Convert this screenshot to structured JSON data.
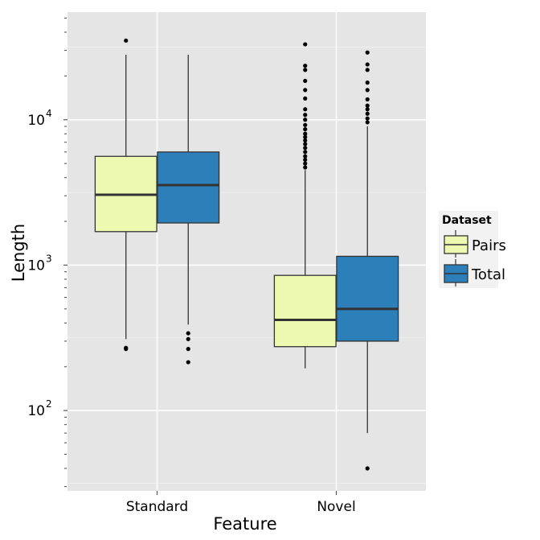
{
  "chart_data": {
    "type": "boxplot",
    "xlabel": "Feature",
    "ylabel": "Length",
    "y_scale": "log10",
    "ylim": [
      28,
      55000
    ],
    "y_major_ticks": [
      100,
      1000,
      10000
    ],
    "y_tick_labels": [
      {
        "base": "10",
        "exp": "2"
      },
      {
        "base": "10",
        "exp": "3"
      },
      {
        "base": "10",
        "exp": "4"
      }
    ],
    "categories": [
      "Standard",
      "Novel"
    ],
    "legend": {
      "title": "Dataset",
      "position": "right"
    },
    "grid": true,
    "series": [
      {
        "name": "Pairs",
        "color": "#EDF8B1",
        "boxes": [
          {
            "category": "Standard",
            "q1": 1700,
            "median": 3050,
            "q3": 5600,
            "whisker_low": 310,
            "whisker_high": 28000,
            "outliers": [
              265,
              270,
              35000
            ]
          },
          {
            "category": "Novel",
            "q1": 275,
            "median": 420,
            "q3": 850,
            "whisker_low": 195,
            "whisker_high": 4500,
            "outliers": [
              4700,
              5000,
              5300,
              5600,
              6000,
              6400,
              6800,
              7200,
              7600,
              8000,
              8600,
              9200,
              10000,
              10800,
              11800,
              14000,
              16000,
              18500,
              22000,
              23500,
              33000
            ]
          }
        ]
      },
      {
        "name": "Total",
        "color": "#2C7FB8",
        "boxes": [
          {
            "category": "Standard",
            "q1": 1950,
            "median": 3550,
            "q3": 6000,
            "whisker_low": 390,
            "whisker_high": 28000,
            "outliers": [
              215,
              265,
              310,
              340
            ]
          },
          {
            "category": "Novel",
            "q1": 300,
            "median": 500,
            "q3": 1150,
            "whisker_low": 70,
            "whisker_high": 9000,
            "outliers": [
              40,
              9600,
              10200,
              11000,
              11800,
              12500,
              13800,
              16000,
              18000,
              22000,
              24000,
              29000
            ]
          }
        ]
      }
    ]
  }
}
